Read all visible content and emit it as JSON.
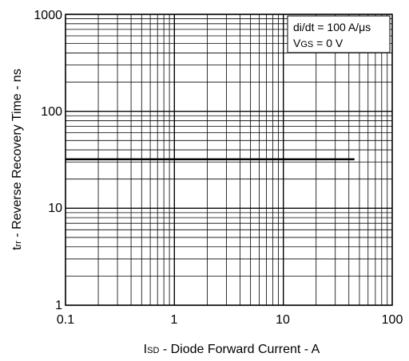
{
  "chart_data": {
    "type": "line",
    "x_scale": "log",
    "y_scale": "log",
    "xlim": [
      0.1,
      100
    ],
    "ylim": [
      1,
      1000
    ],
    "grid": true,
    "x_ticks": [
      "0.1",
      "1",
      "10",
      "100"
    ],
    "y_ticks": [
      "1",
      "10",
      "100",
      "1000"
    ],
    "xlabel": {
      "main": "I",
      "sub": "SD",
      "rest": " -  Diode Forward Current   - A"
    },
    "ylabel": {
      "main": "t",
      "sub": "rr",
      "rest": "  - Reverse Recovery Time  -  ns"
    },
    "annotation": {
      "line1": "di/dt = 100 A/μs",
      "line2_main": "V",
      "line2_sub": "GS",
      "line2_rest": " = 0 V"
    },
    "series": [
      {
        "x": [
          0.1,
          45
        ],
        "y": [
          32,
          32
        ],
        "color": "#000000"
      }
    ]
  }
}
